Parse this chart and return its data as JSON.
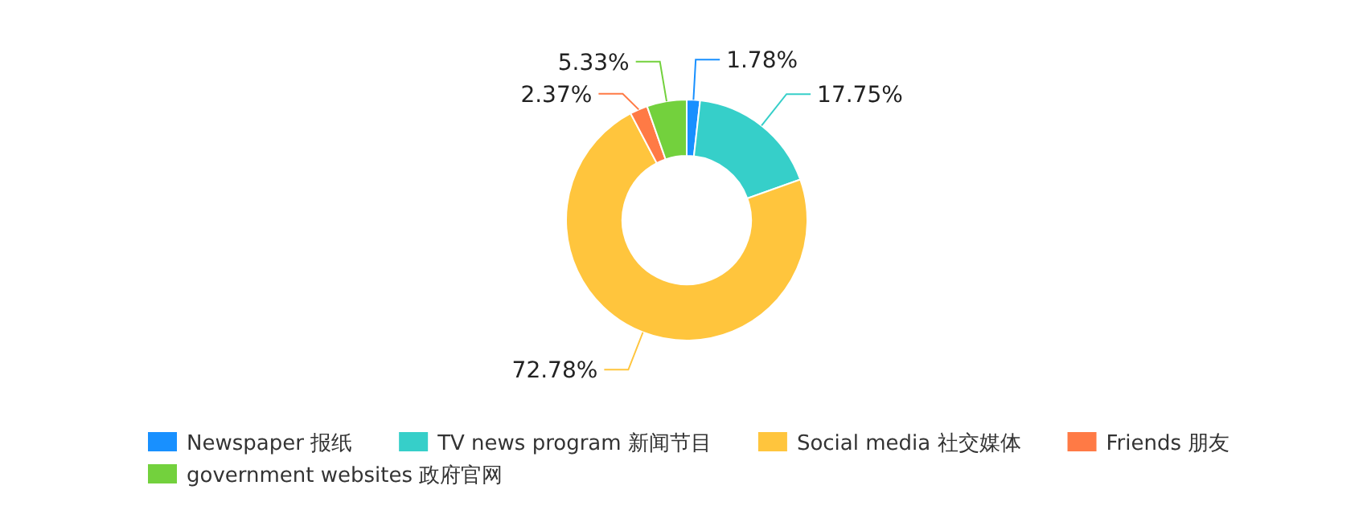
{
  "chart_data": {
    "type": "donut",
    "categories": [
      "Newspaper 报纸",
      "TV news program 新闻节目",
      "Social media 社交媒体",
      "Friends 朋友",
      "government websites 政府官网"
    ],
    "values": [
      1.78,
      17.75,
      72.78,
      2.37,
      5.33
    ],
    "colors": [
      "#1890ff",
      "#36cfc9",
      "#ffc53d",
      "#ff7a45",
      "#73d13d"
    ],
    "value_labels": [
      "1.78%",
      "17.75%",
      "72.78%",
      "2.37%",
      "5.33%"
    ],
    "legend": "bottom"
  }
}
